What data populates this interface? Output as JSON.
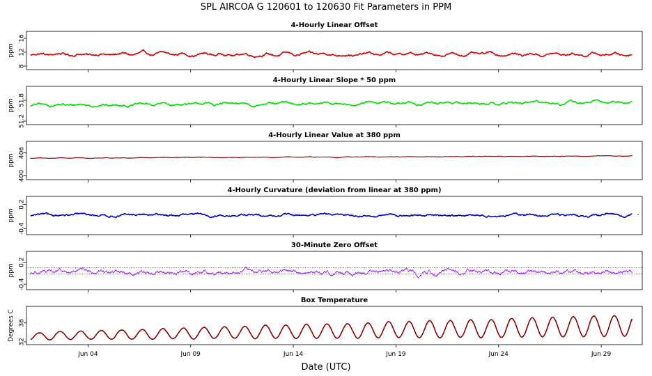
{
  "title": "SPL    AIRCOA G    120601 to 120630    Fit Parameters in PPM",
  "chart_data": {
    "type": "line",
    "xlabel": "Date (UTC)",
    "x_tick_labels": [
      "Jun 04",
      "Jun 09",
      "Jun 14",
      "Jun 19",
      "Jun 24",
      "Jun 29"
    ],
    "x_tick_days": [
      4,
      9,
      14,
      19,
      24,
      29
    ],
    "xlim_days": [
      1,
      31
    ],
    "data_start_day": 1.2,
    "data_end_day": 30.5,
    "panels": [
      {
        "title": "4-Hourly Linear Offset",
        "ylabel": "ppm",
        "ylim": [
          7,
          18
        ],
        "yticks": [
          8,
          12,
          16
        ],
        "color": "#d00000",
        "style": "line",
        "series_hourly": {
          "base": 11.4,
          "trend": 0.0,
          "noise": 0.45,
          "daily_amp": 0.25
        }
      },
      {
        "title": "4-Hourly Linear Slope * 50 ppm",
        "ylabel": "ppm",
        "ylim": [
          51.1,
          52.2
        ],
        "yticks": [
          51.2,
          51.8
        ],
        "tick_labels": [
          "51.2",
          "51.8"
        ],
        "color": "#00e000",
        "style": "line",
        "series_hourly": {
          "base": 51.66,
          "trend": 0.08,
          "noise": 0.045,
          "daily_amp": 0.02
        }
      },
      {
        "title": "4-Hourly Linear Value at 380 ppm",
        "ylabel": "ppm",
        "ylim": [
          399,
          409
        ],
        "yticks": [
          400,
          406
        ],
        "color": "#b00000",
        "style": "dots",
        "series_hourly": {
          "base": 404.6,
          "trend": 0.6,
          "noise": 0.08,
          "daily_amp": 0.03
        }
      },
      {
        "title": "4-Hourly Curvature (deviation from linear at 380 ppm)",
        "ylabel": "ppm",
        "ylim": [
          -0.55,
          0.4
        ],
        "yticks": [
          -0.4,
          0.2
        ],
        "tick_labels": [
          "-0.4",
          "0.2"
        ],
        "color": "#0000c0",
        "style": "line",
        "series_hourly": {
          "base": -0.07,
          "trend": 0.0,
          "noise": 0.035,
          "daily_amp": 0.01
        }
      },
      {
        "title": "30-Minute Zero Offset",
        "ylabel": "ppm",
        "ylim": [
          -0.55,
          0.5
        ],
        "yticks": [
          -0.4,
          0.2
        ],
        "tick_labels": [
          "-0.4",
          "0.2"
        ],
        "color": "#9900ff",
        "style": "dots",
        "ref_lines": [
          0.05,
          -0.12
        ],
        "series_hourly": {
          "base": -0.07,
          "trend": 0.0,
          "noise": 0.06,
          "daily_amp": 0.02
        }
      },
      {
        "title": "Box Temperature",
        "ylabel": "Degrees C",
        "ylim": [
          31.4,
          39.5
        ],
        "yticks": [
          32,
          36
        ],
        "color": "#8b0000",
        "style": "line",
        "series_hourly": {
          "base": 33.2,
          "trend": 2.2,
          "noise": 0.08,
          "daily_amp": 1.9
        }
      }
    ]
  }
}
